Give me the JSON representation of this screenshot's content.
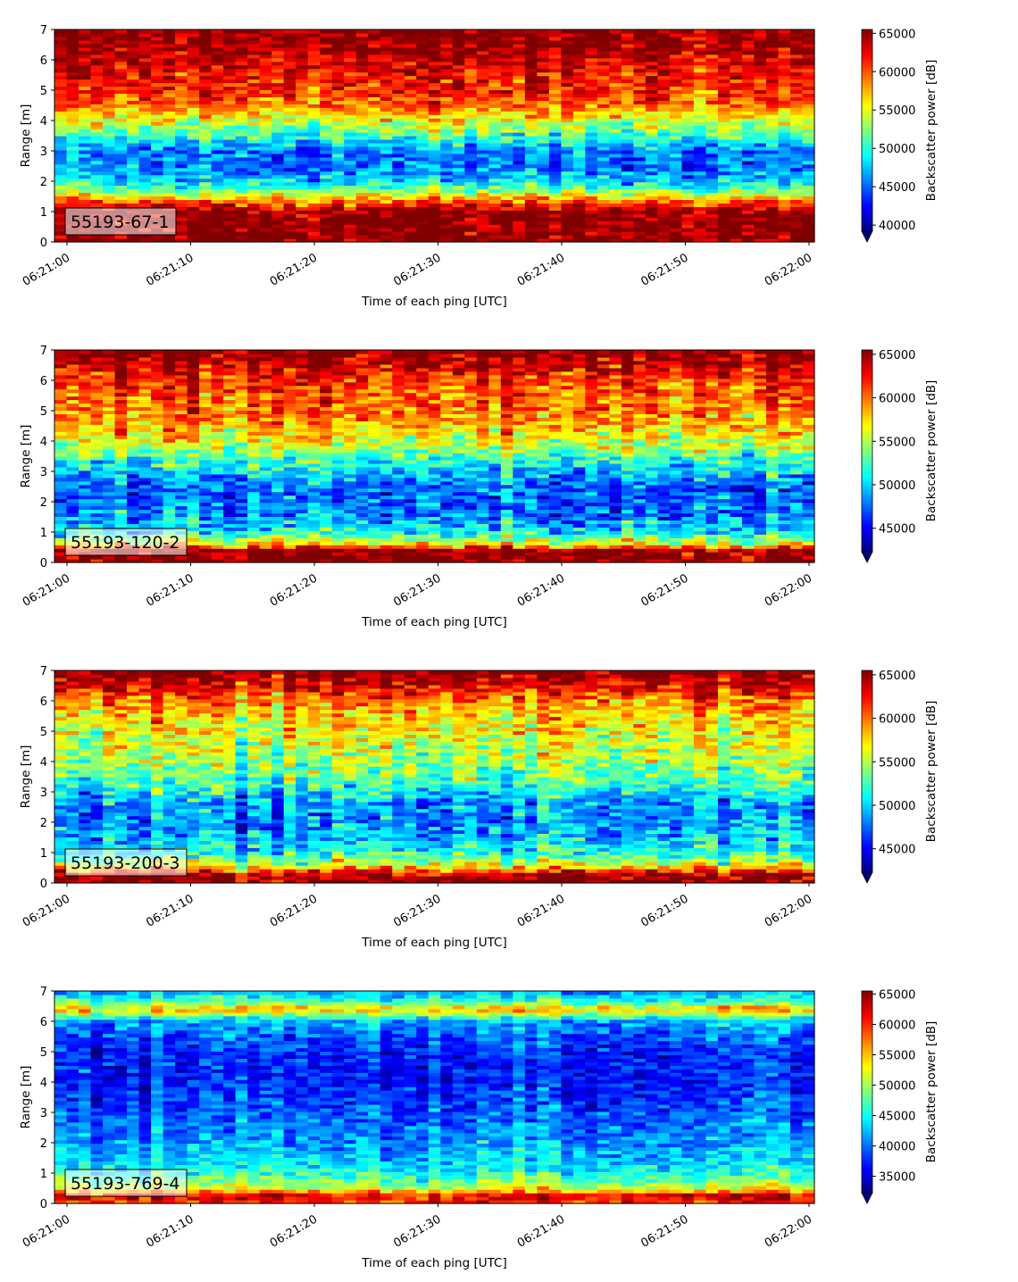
{
  "chart_data": [
    {
      "type": "heatmap",
      "panel_label": "55193-67-1",
      "xlabel": "Time of each ping [UTC]",
      "ylabel": "Range [m]",
      "x_ticks": [
        "06:21:00",
        "06:21:10",
        "06:21:20",
        "06:21:30",
        "06:21:40",
        "06:21:50",
        "06:22:00"
      ],
      "y_ticks": [
        "0",
        "1",
        "2",
        "3",
        "4",
        "5",
        "6",
        "7"
      ],
      "ylim": [
        0,
        7
      ],
      "colorbar_label": "Backscatter power [dB]",
      "colorbar_ticks": [
        "40000",
        "45000",
        "50000",
        "55000",
        "60000",
        "65000"
      ],
      "colorbar_range": [
        39200,
        65500
      ],
      "colormap": "jet",
      "colorbar_extend": "min",
      "range_profile": [
        {
          "range_m": 0.1,
          "value": 65500
        },
        {
          "range_m": 0.6,
          "value": 65500
        },
        {
          "range_m": 1.0,
          "value": 65500
        },
        {
          "range_m": 1.2,
          "value": 62000
        },
        {
          "range_m": 1.6,
          "value": 54000
        },
        {
          "range_m": 2.0,
          "value": 48000
        },
        {
          "range_m": 2.5,
          "value": 45500
        },
        {
          "range_m": 3.0,
          "value": 45500
        },
        {
          "range_m": 3.5,
          "value": 50500
        },
        {
          "range_m": 4.0,
          "value": 55000
        },
        {
          "range_m": 4.5,
          "value": 59000
        },
        {
          "range_m": 5.0,
          "value": 61500
        },
        {
          "range_m": 5.5,
          "value": 62000
        },
        {
          "range_m": 6.0,
          "value": 63500
        },
        {
          "range_m": 6.5,
          "value": 65000
        },
        {
          "range_m": 6.9,
          "value": 65500
        }
      ]
    },
    {
      "type": "heatmap",
      "panel_label": "55193-120-2",
      "xlabel": "Time of each ping [UTC]",
      "ylabel": "Range [m]",
      "x_ticks": [
        "06:21:00",
        "06:21:10",
        "06:21:20",
        "06:21:30",
        "06:21:40",
        "06:21:50",
        "06:22:00"
      ],
      "y_ticks": [
        "0",
        "1",
        "2",
        "3",
        "4",
        "5",
        "6",
        "7"
      ],
      "ylim": [
        0,
        7
      ],
      "colorbar_label": "Backscatter power [dB]",
      "colorbar_ticks": [
        "45000",
        "50000",
        "55000",
        "60000",
        "65000"
      ],
      "colorbar_range": [
        42300,
        65500
      ],
      "colormap": "jet",
      "colorbar_extend": "min",
      "range_profile": [
        {
          "range_m": 0.1,
          "value": 65500
        },
        {
          "range_m": 0.4,
          "value": 65500
        },
        {
          "range_m": 0.6,
          "value": 57000
        },
        {
          "range_m": 1.0,
          "value": 51000
        },
        {
          "range_m": 1.5,
          "value": 48500
        },
        {
          "range_m": 2.0,
          "value": 47500
        },
        {
          "range_m": 2.5,
          "value": 47500
        },
        {
          "range_m": 3.0,
          "value": 50000
        },
        {
          "range_m": 3.5,
          "value": 53000
        },
        {
          "range_m": 4.0,
          "value": 56000
        },
        {
          "range_m": 4.5,
          "value": 58500
        },
        {
          "range_m": 5.0,
          "value": 60000
        },
        {
          "range_m": 5.5,
          "value": 60500
        },
        {
          "range_m": 6.0,
          "value": 61500
        },
        {
          "range_m": 6.5,
          "value": 64000
        },
        {
          "range_m": 6.9,
          "value": 65500
        }
      ]
    },
    {
      "type": "heatmap",
      "panel_label": "55193-200-3",
      "xlabel": "Time of each ping [UTC]",
      "ylabel": "Range [m]",
      "x_ticks": [
        "06:21:00",
        "06:21:10",
        "06:21:20",
        "06:21:30",
        "06:21:40",
        "06:21:50",
        "06:22:00"
      ],
      "y_ticks": [
        "0",
        "1",
        "2",
        "3",
        "4",
        "5",
        "6",
        "7"
      ],
      "ylim": [
        0,
        7
      ],
      "colorbar_label": "Backscatter power [dB]",
      "colorbar_ticks": [
        "45000",
        "50000",
        "55000",
        "60000",
        "65000"
      ],
      "colorbar_range": [
        42300,
        65500
      ],
      "colormap": "jet",
      "colorbar_extend": "min",
      "range_profile": [
        {
          "range_m": 0.1,
          "value": 65500
        },
        {
          "range_m": 0.3,
          "value": 64000
        },
        {
          "range_m": 0.6,
          "value": 56000
        },
        {
          "range_m": 1.0,
          "value": 51500
        },
        {
          "range_m": 1.5,
          "value": 49500
        },
        {
          "range_m": 2.0,
          "value": 48500
        },
        {
          "range_m": 2.5,
          "value": 48500
        },
        {
          "range_m": 3.0,
          "value": 50500
        },
        {
          "range_m": 3.5,
          "value": 53000
        },
        {
          "range_m": 4.0,
          "value": 54500
        },
        {
          "range_m": 4.5,
          "value": 55500
        },
        {
          "range_m": 5.0,
          "value": 56500
        },
        {
          "range_m": 5.5,
          "value": 57500
        },
        {
          "range_m": 6.0,
          "value": 59500
        },
        {
          "range_m": 6.5,
          "value": 63000
        },
        {
          "range_m": 6.9,
          "value": 65500
        }
      ]
    },
    {
      "type": "heatmap",
      "panel_label": "55193-769-4",
      "xlabel": "Time of each ping [UTC]",
      "ylabel": "Range [m]",
      "x_ticks": [
        "06:21:00",
        "06:21:10",
        "06:21:20",
        "06:21:30",
        "06:21:40",
        "06:21:50",
        "06:22:00"
      ],
      "y_ticks": [
        "0",
        "1",
        "2",
        "3",
        "4",
        "5",
        "6",
        "7"
      ],
      "ylim": [
        0,
        7
      ],
      "colorbar_label": "Backscatter power [dB]",
      "colorbar_ticks": [
        "35000",
        "40000",
        "45000",
        "50000",
        "55000",
        "60000",
        "65000"
      ],
      "colorbar_range": [
        32300,
        65500
      ],
      "colormap": "jet",
      "colorbar_extend": "min",
      "range_profile": [
        {
          "range_m": 0.1,
          "value": 60000
        },
        {
          "range_m": 0.25,
          "value": 64000
        },
        {
          "range_m": 0.5,
          "value": 52000
        },
        {
          "range_m": 1.0,
          "value": 46000
        },
        {
          "range_m": 1.5,
          "value": 43500
        },
        {
          "range_m": 2.0,
          "value": 42000
        },
        {
          "range_m": 2.5,
          "value": 40500
        },
        {
          "range_m": 3.0,
          "value": 39500
        },
        {
          "range_m": 3.5,
          "value": 38500
        },
        {
          "range_m": 4.0,
          "value": 37500
        },
        {
          "range_m": 4.5,
          "value": 37500
        },
        {
          "range_m": 5.0,
          "value": 38000
        },
        {
          "range_m": 5.5,
          "value": 39500
        },
        {
          "range_m": 6.0,
          "value": 42000
        },
        {
          "range_m": 6.4,
          "value": 56000
        },
        {
          "range_m": 6.6,
          "value": 49000
        },
        {
          "range_m": 6.9,
          "value": 43000
        }
      ]
    }
  ]
}
